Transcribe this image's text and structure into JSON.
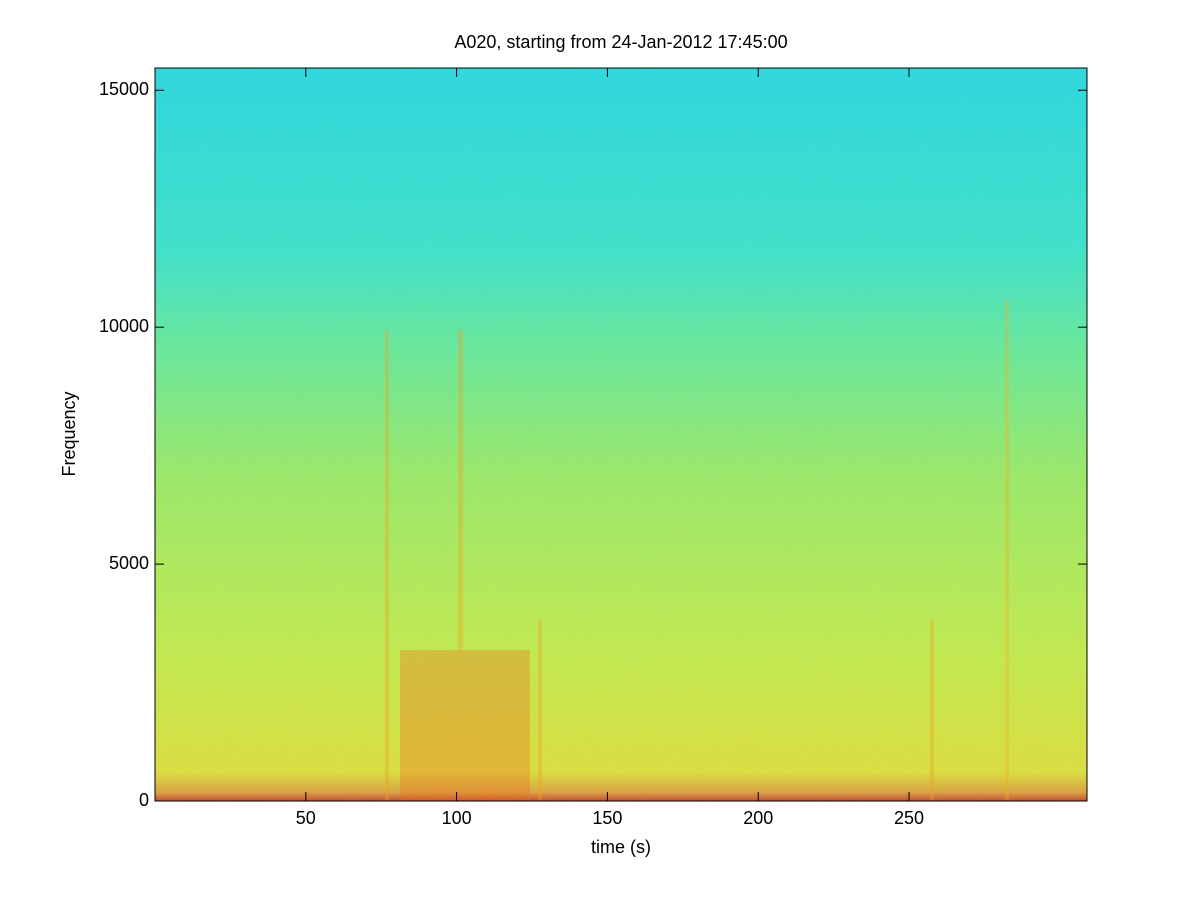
{
  "chart_data": {
    "type": "spectrogram",
    "title": "A020, starting from 24-Jan-2012 17:45:00",
    "x_label": "time (s)",
    "y_label": "Frequency",
    "xlim": [
      0,
      309
    ],
    "xticks": [
      50,
      100,
      150,
      200,
      250
    ],
    "ylim": [
      0,
      15470
    ],
    "yticks": [
      0,
      5000,
      10000,
      15000
    ]
  }
}
